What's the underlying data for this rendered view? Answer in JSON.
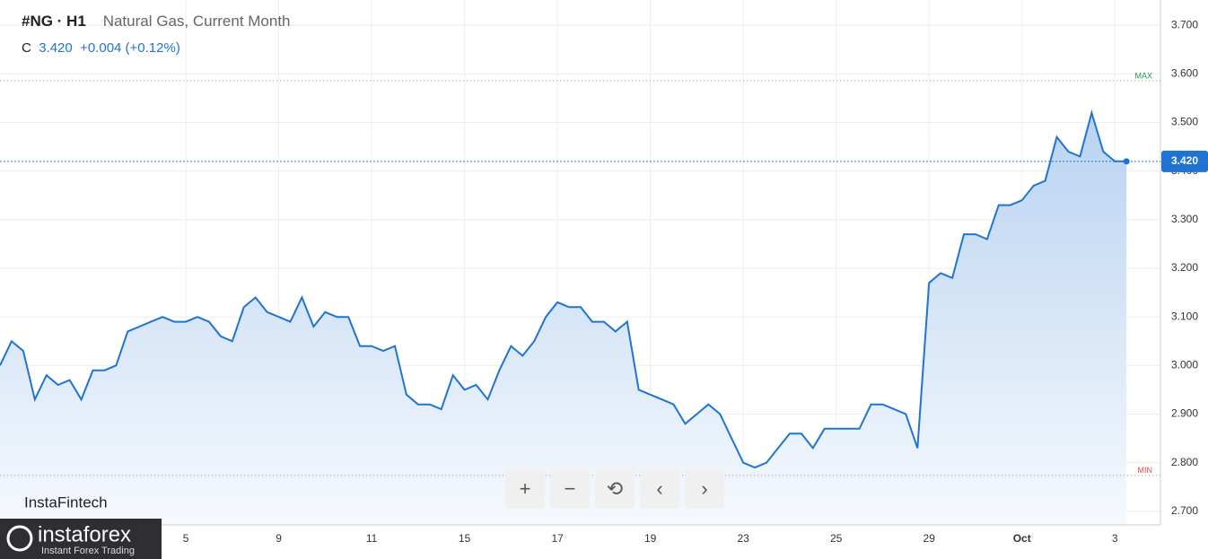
{
  "header": {
    "symbol": "#NG · H1",
    "name": "Natural Gas, Current Month",
    "close_prefix": "C",
    "close": "3.420",
    "change": "+0.004 (+0.12%)"
  },
  "branding": {
    "watermark": "InstaFintech",
    "logo": "instaforex",
    "tagline": "Instant Forex Trading"
  },
  "chart_data": {
    "type": "area",
    "color": "#1f74d3",
    "categories": [
      null,
      null,
      null,
      null,
      null,
      null,
      null,
      null,
      null,
      null,
      null,
      null,
      null,
      null,
      null,
      null,
      "5",
      null,
      null,
      null,
      null,
      null,
      null,
      null,
      "9",
      null,
      null,
      null,
      null,
      null,
      null,
      null,
      "11",
      null,
      null,
      null,
      null,
      null,
      null,
      null,
      "15",
      null,
      null,
      null,
      null,
      null,
      null,
      null,
      "17",
      null,
      null,
      null,
      null,
      null,
      null,
      null,
      "19",
      null,
      null,
      null,
      null,
      null,
      null,
      null,
      "23",
      null,
      null,
      null,
      null,
      null,
      null,
      null,
      "25",
      null,
      null,
      null,
      null,
      null,
      null,
      null,
      "29",
      null,
      null,
      null,
      null,
      null,
      null,
      null,
      "Oct",
      null,
      null,
      null,
      null,
      null,
      null,
      null,
      "3",
      null
    ],
    "values": [
      3.0,
      3.05,
      3.03,
      2.93,
      2.98,
      2.96,
      2.97,
      2.93,
      2.99,
      2.99,
      3.0,
      3.07,
      3.08,
      3.09,
      3.1,
      3.09,
      3.09,
      3.1,
      3.09,
      3.06,
      3.05,
      3.12,
      3.14,
      3.11,
      3.1,
      3.09,
      3.14,
      3.08,
      3.11,
      3.1,
      3.1,
      3.04,
      3.04,
      3.03,
      3.04,
      2.94,
      2.92,
      2.92,
      2.91,
      2.98,
      2.95,
      2.96,
      2.93,
      2.99,
      3.04,
      3.02,
      3.05,
      3.1,
      3.13,
      3.12,
      3.12,
      3.09,
      3.09,
      3.07,
      3.09,
      2.95,
      2.94,
      2.93,
      2.92,
      2.88,
      2.9,
      2.92,
      2.9,
      2.85,
      2.8,
      2.79,
      2.8,
      2.83,
      2.86,
      2.86,
      2.83,
      2.87,
      2.87,
      2.87,
      2.87,
      2.92,
      2.92,
      2.91,
      2.9,
      2.83,
      3.17,
      3.19,
      3.18,
      3.27,
      3.27,
      3.26,
      3.33,
      3.33,
      3.34,
      3.37,
      3.38,
      3.47,
      3.44,
      3.43,
      3.52,
      3.44,
      3.42,
      3.42
    ],
    "ylim": [
      2.672,
      3.752
    ],
    "yticks": [
      {
        "value": 2.7,
        "label": "2.700"
      },
      {
        "value": 2.8,
        "label": "2.800"
      },
      {
        "value": 2.9,
        "label": "2.900"
      },
      {
        "value": 3.0,
        "label": "3.000"
      },
      {
        "value": 3.1,
        "label": "3.100"
      },
      {
        "value": 3.2,
        "label": "3.200"
      },
      {
        "value": 3.3,
        "label": "3.300"
      },
      {
        "value": 3.4,
        "label": "3.400"
      },
      {
        "value": 3.5,
        "label": "3.500"
      },
      {
        "value": 3.6,
        "label": "3.600"
      },
      {
        "value": 3.7,
        "label": "3.700"
      }
    ],
    "max_line": {
      "value": 3.586,
      "label": "MAX"
    },
    "min_line": {
      "value": 2.774,
      "label": "MIN"
    },
    "last_price": {
      "value": 3.42,
      "label": "3.420"
    },
    "grid": true
  }
}
